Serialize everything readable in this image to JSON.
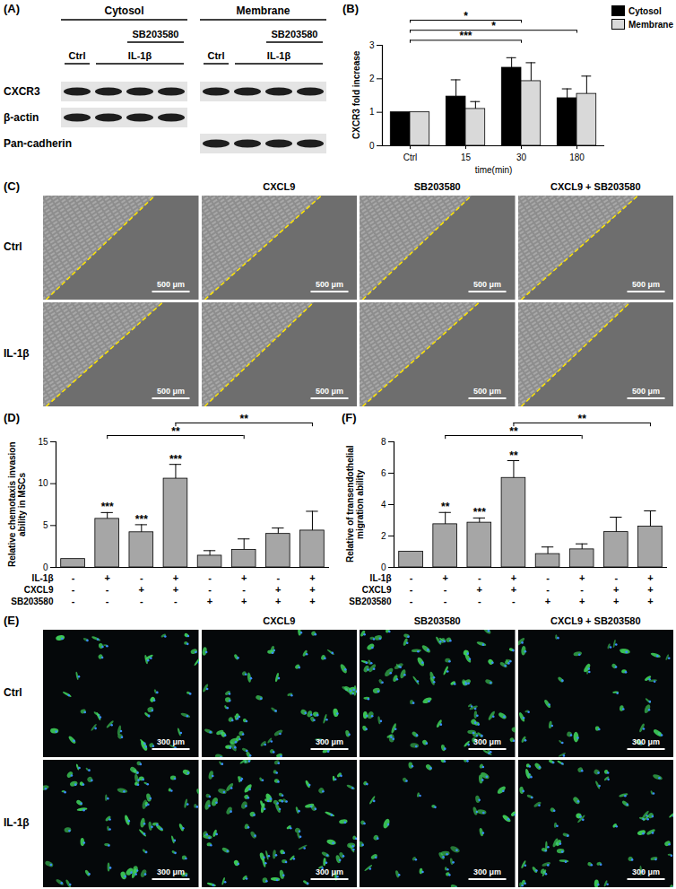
{
  "chart_data": [
    {
      "type": "bar",
      "title": "(B)",
      "x_label": "time(min)",
      "y_label": "CXCR3 fold increase",
      "categories": [
        "Ctrl",
        "15",
        "30",
        "180"
      ],
      "series": [
        {
          "name": "Cytosol",
          "color": "#000000",
          "values": [
            1,
            1.47,
            2.33,
            1.42
          ],
          "errors": [
            0,
            0.5,
            0.3,
            0.28
          ]
        },
        {
          "name": "Membrane",
          "color": "#d9d9d9",
          "values": [
            1,
            1.1,
            1.93,
            1.55
          ],
          "errors": [
            0,
            0.22,
            0.55,
            0.53
          ]
        }
      ],
      "ylim": [
        0,
        3
      ],
      "yticks": [
        0,
        1,
        2,
        3
      ],
      "legend": "top-right",
      "annotations": [
        {
          "from": 0,
          "to": 2,
          "label": "***"
        },
        {
          "from": 0,
          "to": 3,
          "label": "*"
        },
        {
          "from": 0,
          "to": 2,
          "label": "*"
        }
      ]
    },
    {
      "type": "bar",
      "title": "(D)",
      "y_label": "Relative chemotaxis invasion ability in MSCs",
      "categories": [
        null,
        null,
        null,
        null,
        null,
        null,
        null,
        null
      ],
      "values": [
        1,
        5.8,
        4.2,
        10.6,
        1.4,
        2.1,
        4.0,
        4.4
      ],
      "errors": [
        0,
        0.75,
        0.9,
        1.7,
        0.6,
        1.3,
        0.7,
        2.3
      ],
      "color": "#a6a6a6",
      "ylim": [
        0,
        15
      ],
      "yticks": [
        0,
        5,
        10,
        15
      ],
      "conditions": [
        {
          "name": "IL-1β",
          "signs": [
            "-",
            "+",
            "-",
            "+",
            "-",
            "+",
            "-",
            "+"
          ]
        },
        {
          "name": "CXCL9",
          "signs": [
            "-",
            "-",
            "+",
            "+",
            "-",
            "-",
            "+",
            "+"
          ]
        },
        {
          "name": "SB203580",
          "signs": [
            "-",
            "-",
            "-",
            "-",
            "+",
            "+",
            "+",
            "+"
          ]
        }
      ],
      "annotations": [
        {
          "at": 1,
          "label": "***"
        },
        {
          "at": 2,
          "label": "***"
        },
        {
          "at": 3,
          "label": "***"
        },
        {
          "from": 1,
          "to": 5,
          "label": "**"
        },
        {
          "from": 3,
          "to": 7,
          "label": "**"
        }
      ]
    },
    {
      "type": "bar",
      "title": "(F)",
      "y_label": "Relative of transendothelial migration ability",
      "categories": [
        null,
        null,
        null,
        null,
        null,
        null,
        null,
        null
      ],
      "values": [
        1,
        2.75,
        2.85,
        5.7,
        0.85,
        1.15,
        2.25,
        2.6
      ],
      "errors": [
        0,
        0.75,
        0.3,
        1.1,
        0.45,
        0.35,
        0.95,
        1.0
      ],
      "color": "#a6a6a6",
      "ylim": [
        0,
        8
      ],
      "yticks": [
        0,
        2,
        4,
        6,
        8
      ],
      "conditions": [
        {
          "name": "IL-1β",
          "signs": [
            "-",
            "+",
            "-",
            "+",
            "-",
            "+",
            "-",
            "+"
          ]
        },
        {
          "name": "CXCL9",
          "signs": [
            "-",
            "-",
            "+",
            "+",
            "-",
            "-",
            "+",
            "+"
          ]
        },
        {
          "name": "SB203580",
          "signs": [
            "-",
            "-",
            "-",
            "-",
            "+",
            "+",
            "+",
            "+"
          ]
        }
      ],
      "annotations": [
        {
          "at": 1,
          "label": "**"
        },
        {
          "at": 2,
          "label": "***"
        },
        {
          "at": 3,
          "label": "**"
        },
        {
          "from": 1,
          "to": 5,
          "label": "**"
        },
        {
          "from": 3,
          "to": 7,
          "label": "**"
        }
      ]
    }
  ],
  "blot": {
    "title": "(A)",
    "row_labels": [
      "CXCR3",
      "β-actin",
      "Pan-cadherin"
    ],
    "groups": [
      {
        "label": "Cytosol",
        "lanes": 4,
        "rows": [
          "CXCR3",
          "β-actin"
        ],
        "treatments": [
          {
            "label": "Ctrl",
            "lanes": [
              0
            ]
          },
          {
            "label": "IL-1β",
            "lanes": [
              1,
              2,
              3
            ]
          },
          {
            "label": "SB203580",
            "lanes": [
              2,
              3
            ]
          }
        ]
      },
      {
        "label": "Membrane",
        "lanes": 4,
        "rows": [
          "CXCR3",
          "Pan-cadherin"
        ],
        "treatments": [
          {
            "label": "Ctrl",
            "lanes": [
              0
            ]
          },
          {
            "label": "IL-1β",
            "lanes": [
              1,
              2,
              3
            ]
          },
          {
            "label": "SB203580",
            "lanes": [
              2,
              3
            ]
          }
        ]
      }
    ]
  },
  "micrographs": [
    {
      "title": "(C)",
      "type": "phase-contrast",
      "columns": [
        null,
        "CXCL9",
        "SB203580",
        "CXCL9 + SB203580"
      ],
      "rows": [
        "Ctrl",
        "IL-1β"
      ],
      "scale_bar": "500 μm"
    },
    {
      "title": "(E)",
      "type": "fluorescence",
      "columns": [
        null,
        "CXCL9",
        "SB203580",
        "CXCL9 + SB203580"
      ],
      "rows": [
        "Ctrl",
        "IL-1β"
      ],
      "scale_bar": "300 μm"
    }
  ]
}
